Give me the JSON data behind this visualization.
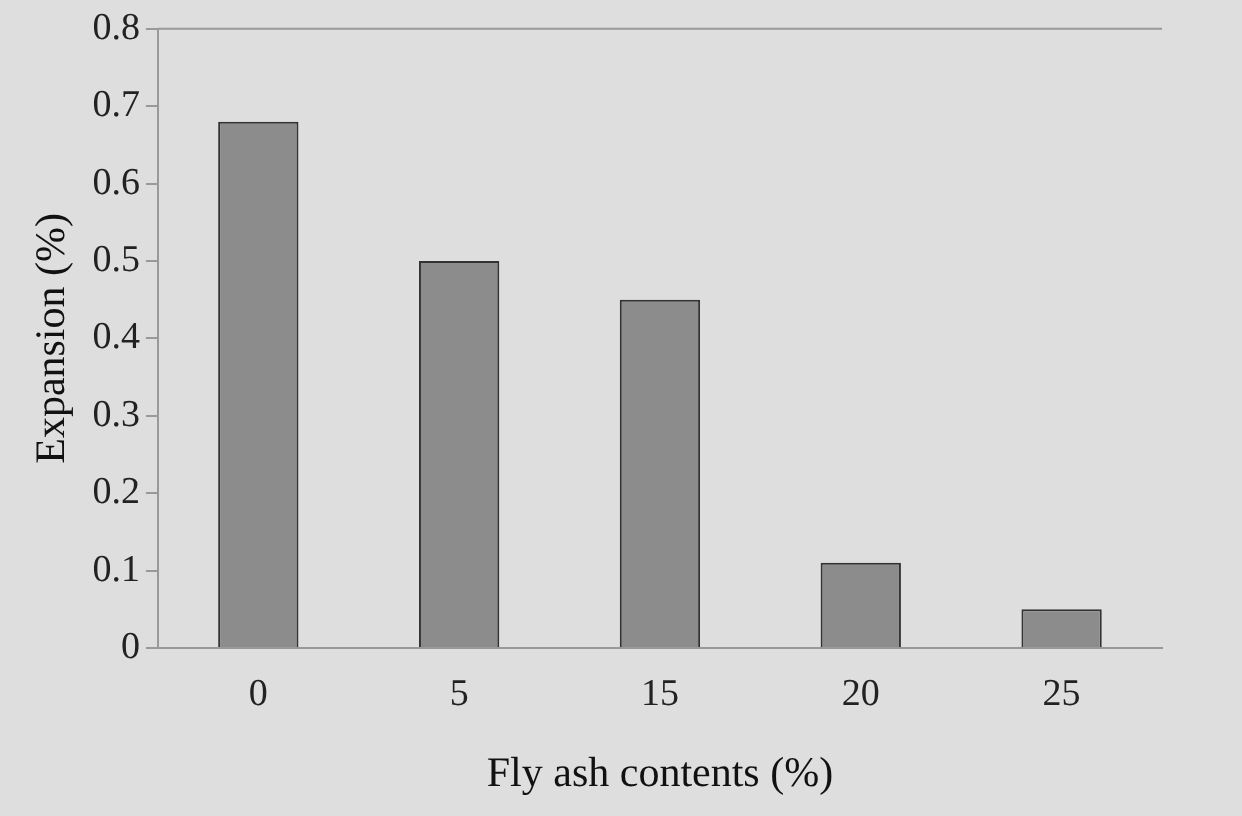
{
  "chart_data": {
    "type": "bar",
    "xlabel": "Fly ash contents (%)",
    "ylabel": "Expansion (%)",
    "categories": [
      "0",
      "5",
      "15",
      "20",
      "25"
    ],
    "values": [
      0.68,
      0.5,
      0.45,
      0.11,
      0.05
    ],
    "color": "#8c8c8c",
    "ylim": [
      0,
      0.8
    ],
    "yticks": [
      0,
      0.1,
      0.2,
      0.3,
      0.4,
      0.5,
      0.6,
      0.7,
      0.8
    ],
    "grid": false
  }
}
